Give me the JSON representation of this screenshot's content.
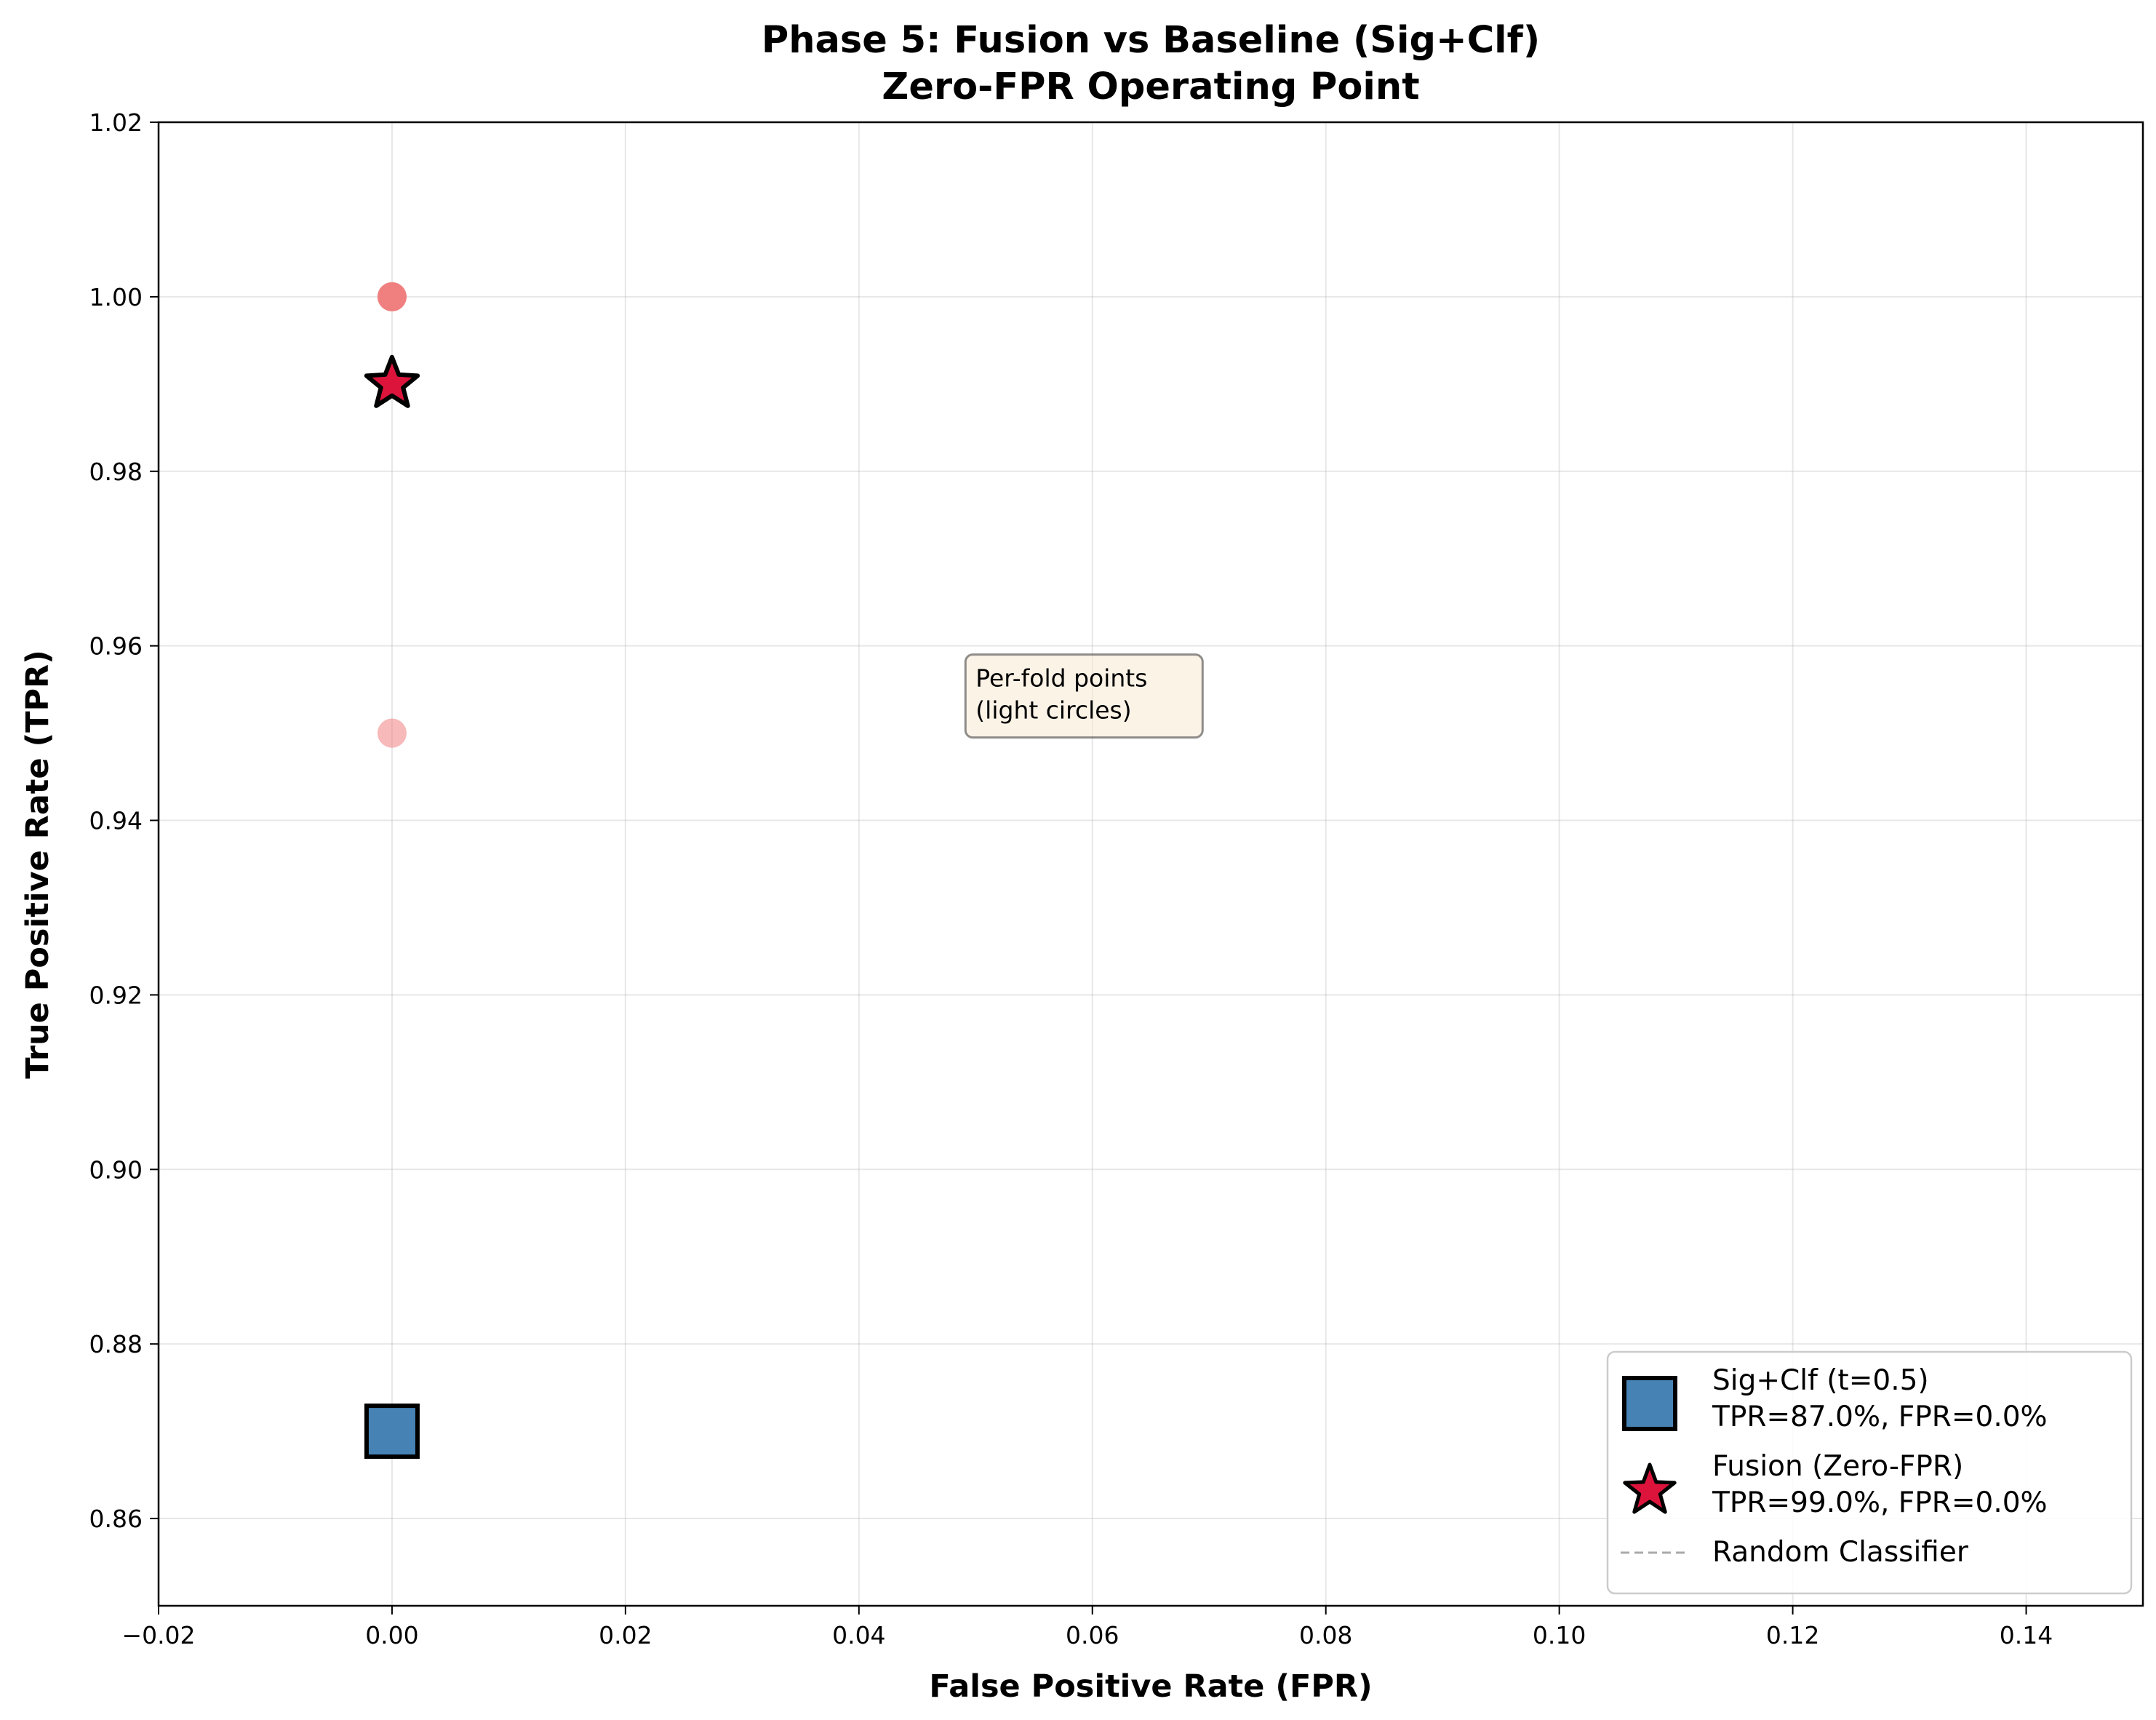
{
  "chart_data": {
    "type": "scatter",
    "title_lines": [
      "Phase 5: Fusion vs Baseline (Sig+Clf)",
      "Zero-FPR Operating Point"
    ],
    "xlabel": "False Positive Rate (FPR)",
    "ylabel": "True Positive Rate (TPR)",
    "xlim": [
      -0.02,
      0.15
    ],
    "ylim": [
      0.85,
      1.02
    ],
    "xticks": [
      -0.02,
      0.0,
      0.02,
      0.04,
      0.06,
      0.08,
      0.1,
      0.12,
      0.14
    ],
    "xtick_labels": [
      "−0.02",
      "0.00",
      "0.02",
      "0.04",
      "0.06",
      "0.08",
      "0.10",
      "0.12",
      "0.14"
    ],
    "yticks": [
      0.86,
      0.88,
      0.9,
      0.92,
      0.94,
      0.96,
      0.98,
      1.0,
      1.02
    ],
    "ytick_labels": [
      "0.86",
      "0.88",
      "0.90",
      "0.92",
      "0.94",
      "0.96",
      "0.98",
      "1.00",
      "1.02"
    ],
    "grid": true,
    "legend_position": "lower-right",
    "per_fold_points": [
      {
        "x": 0.0,
        "y": 1.0,
        "color": "#f08080",
        "opacity": 0.95
      },
      {
        "x": 0.0,
        "y": 1.0,
        "color": "#f08080",
        "opacity": 0.9
      },
      {
        "x": 0.0,
        "y": 0.95,
        "color": "#f08080",
        "opacity": 0.55
      }
    ],
    "series": [
      {
        "name": "Sig+Clf (t=0.5)",
        "name_line2": "TPR=87.0%, FPR=0.0%",
        "marker": "square",
        "color": "#4682b4",
        "x": 0.0,
        "y": 0.87
      },
      {
        "name": "Fusion (Zero-FPR)",
        "name_line2": "TPR=99.0%, FPR=0.0%",
        "marker": "star",
        "color": "#dc143c",
        "x": 0.0,
        "y": 0.99
      },
      {
        "name": "Random Classifier",
        "marker": "dashed-line",
        "color": "#aaaaaa"
      }
    ],
    "annotation": {
      "lines": [
        "Per-fold points",
        "(light circles)"
      ],
      "x": 0.05,
      "y": 0.951,
      "background": "#faebd7"
    }
  }
}
